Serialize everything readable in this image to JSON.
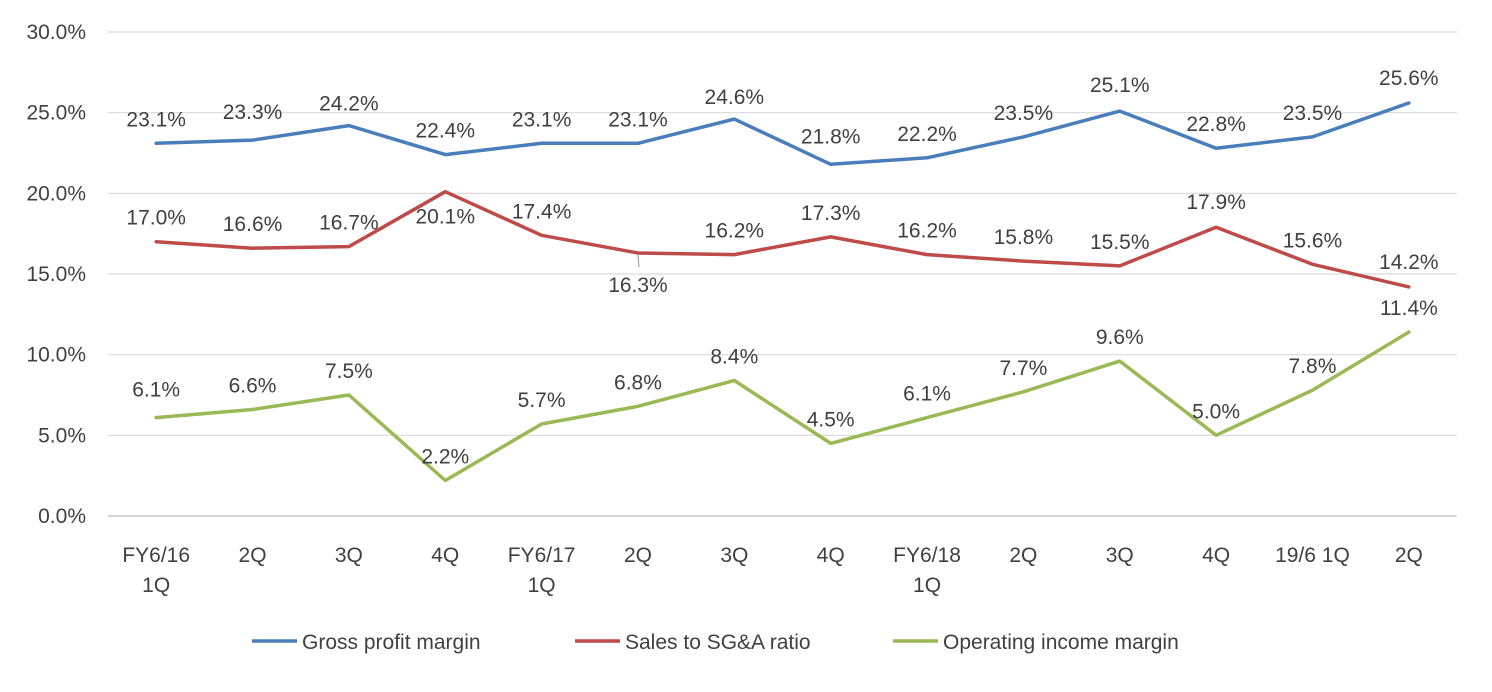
{
  "chart_data": {
    "type": "line",
    "title": "",
    "xlabel": "",
    "ylabel": "",
    "categories": [
      [
        "FY6/16",
        "1Q"
      ],
      [
        "2Q"
      ],
      [
        "3Q"
      ],
      [
        "4Q"
      ],
      [
        "FY6/17",
        "1Q"
      ],
      [
        "2Q"
      ],
      [
        "3Q"
      ],
      [
        "4Q"
      ],
      [
        "FY6/18",
        "1Q"
      ],
      [
        "2Q"
      ],
      [
        "3Q"
      ],
      [
        "4Q"
      ],
      [
        "19/6 1Q"
      ],
      [
        "2Q"
      ]
    ],
    "ylim": [
      0,
      30
    ],
    "yticks": [
      0,
      5,
      10,
      15,
      20,
      25,
      30
    ],
    "ytick_labels": [
      "0.0%",
      "5.0%",
      "10.0%",
      "15.0%",
      "20.0%",
      "25.0%",
      "30.0%"
    ],
    "grid": true,
    "legend_position": "bottom",
    "series": [
      {
        "name": "Gross profit margin",
        "color": "#4a7ebb",
        "values": [
          23.1,
          23.3,
          24.2,
          22.4,
          23.1,
          23.1,
          24.6,
          21.8,
          22.2,
          23.5,
          25.1,
          22.8,
          23.5,
          25.6
        ],
        "labels": [
          "23.1%",
          "23.3%",
          "24.2%",
          "22.4%",
          "23.1%",
          "23.1%",
          "24.6%",
          "21.8%",
          "22.2%",
          "23.5%",
          "25.1%",
          "22.8%",
          "23.5%",
          "25.6%"
        ]
      },
      {
        "name": "Sales to SG&A ratio",
        "color": "#be4b48",
        "values": [
          17.0,
          16.6,
          16.7,
          20.1,
          17.4,
          16.3,
          16.2,
          17.3,
          16.2,
          15.8,
          15.5,
          17.9,
          15.6,
          14.2
        ],
        "labels": [
          "17.0%",
          "16.6%",
          "16.7%",
          "20.1%",
          "17.4%",
          "16.3%",
          "16.2%",
          "17.3%",
          "16.2%",
          "15.8%",
          "15.5%",
          "17.9%",
          "15.6%",
          "14.2%"
        ]
      },
      {
        "name": "Operating income margin",
        "color": "#98b954",
        "values": [
          6.1,
          6.6,
          7.5,
          2.2,
          5.7,
          6.8,
          8.4,
          4.5,
          6.1,
          7.7,
          9.6,
          5.0,
          7.8,
          11.4
        ],
        "labels": [
          "6.1%",
          "6.6%",
          "7.5%",
          "2.2%",
          "5.7%",
          "6.8%",
          "8.4%",
          "4.5%",
          "6.1%",
          "7.7%",
          "9.6%",
          "5.0%",
          "7.8%",
          "11.4%"
        ]
      }
    ]
  }
}
